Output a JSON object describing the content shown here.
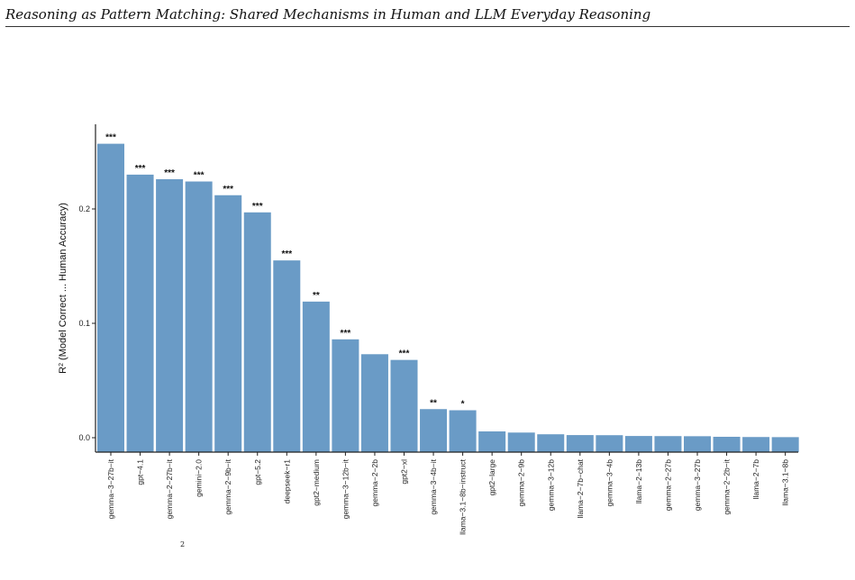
{
  "running_head": "Reasoning as Pattern Matching: Shared Mechanisms in Human and LLM Everyday Reasoning",
  "caption_fragment": "2",
  "chart_data": {
    "type": "bar",
    "ylabel_main": "R",
    "ylabel_sup": "2",
    "ylabel_rest": " (Model Correct ... Human Accuracy)",
    "ylim": [
      0,
      0.26
    ],
    "yticks": [
      0.0,
      0.1,
      0.2
    ],
    "ytick_labels": [
      "0.0",
      "0.1",
      "0.2"
    ],
    "grid": false,
    "bar_color": "#6a9bc6",
    "categories": [
      "gemma−3−27b−it",
      "gpt−4.1",
      "gemma−2−27b−it",
      "gemini−2.0",
      "gemma−2−9b−it",
      "gpt−5.2",
      "deepseek−r1",
      "gpt2−medium",
      "gemma−3−12b−it",
      "gemma−2−2b",
      "gpt2−xl",
      "gemma−3−4b−it",
      "llama−3.1−8b−instruct",
      "gpt2−large",
      "gemma−2−9b",
      "gemma−3−12b",
      "llama−2−7b−chat",
      "gemma−3−4b",
      "llama−2−13b",
      "gemma−2−27b",
      "gemma−3−27b",
      "gemma−2−2b−it",
      "llama−2−7b",
      "llama−3.1−8b"
    ],
    "values": [
      0.257,
      0.23,
      0.226,
      0.224,
      0.212,
      0.197,
      0.155,
      0.119,
      0.086,
      0.073,
      0.068,
      0.025,
      0.024,
      0.0055,
      0.0045,
      0.003,
      0.0023,
      0.0022,
      0.0015,
      0.0014,
      0.0013,
      0.0008,
      0.0006,
      0.0005
    ],
    "significance": [
      "***",
      "***",
      "***",
      "***",
      "***",
      "***",
      "***",
      "**",
      "***",
      "",
      "***",
      "**",
      "*",
      "",
      "",
      "",
      "",
      "",
      "",
      "",
      "",
      "",
      "",
      ""
    ]
  }
}
